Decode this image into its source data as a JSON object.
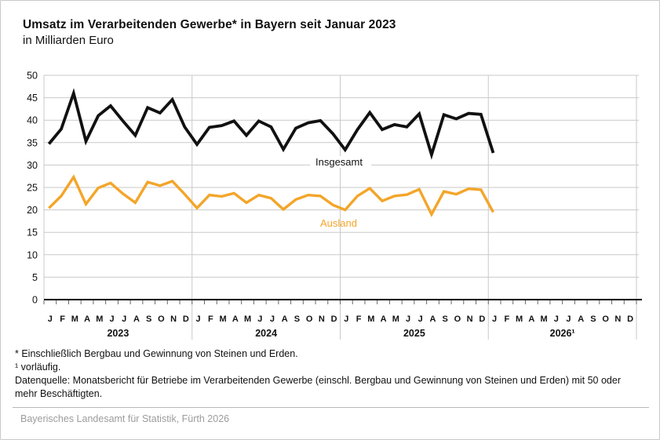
{
  "title": "Umsatz im Verarbeitenden Gewerbe* in Bayern seit Januar 2023",
  "subtitle": "in Milliarden Euro",
  "footnotes": [
    "* Einschließlich Bergbau und Gewinnung von Steinen und Erden.",
    "¹ vorläufig.",
    "Datenquelle: Monatsbericht für Betriebe im Verarbeitenden Gewerbe (einschl. Bergbau und Gewinnung von Steinen und Erden) mit 50 oder mehr Beschäftigten."
  ],
  "footer": "Bayerisches Landesamt für Statistik, Fürth 2026",
  "colors": {
    "insgesamt": "#111111",
    "ausland": "#F3A529",
    "grid": "#c9c9c9",
    "axis": "#000000",
    "tick": "#666666",
    "footer_text": "#9c9c9c"
  },
  "chart_data": {
    "type": "line",
    "title": "Umsatz im Verarbeitenden Gewerbe* in Bayern seit Januar 2023",
    "ylabel": "in Milliarden Euro",
    "xlabel": "",
    "ylim": [
      0,
      50
    ],
    "yticks": [
      0,
      5,
      10,
      15,
      20,
      25,
      30,
      35,
      40,
      45,
      50
    ],
    "grid": true,
    "legend_position": "inline-labels",
    "years": [
      "2023",
      "2024",
      "2025",
      "2026¹"
    ],
    "month_letters": [
      "J",
      "F",
      "M",
      "A",
      "M",
      "J",
      "J",
      "A",
      "S",
      "O",
      "N",
      "D"
    ],
    "series": [
      {
        "name": "Insgesamt",
        "color": "#111111",
        "values": [
          34.7,
          38.0,
          46.0,
          35.3,
          41.0,
          43.2,
          39.8,
          36.6,
          42.8,
          41.6,
          44.6,
          38.5,
          34.6,
          38.4,
          38.8,
          39.8,
          36.6,
          39.8,
          38.5,
          33.5,
          38.2,
          39.4,
          39.9,
          37.0,
          33.4,
          37.9,
          41.7,
          37.9,
          39.0,
          38.5,
          41.4,
          32.3,
          41.2,
          40.3,
          41.5,
          41.3,
          32.7
        ]
      },
      {
        "name": "Ausland",
        "color": "#F3A529",
        "values": [
          20.4,
          23.1,
          27.3,
          21.3,
          24.9,
          26.0,
          23.6,
          21.6,
          26.2,
          25.4,
          26.4,
          23.5,
          20.4,
          23.3,
          23.0,
          23.7,
          21.6,
          23.3,
          22.6,
          20.1,
          22.3,
          23.3,
          23.1,
          21.1,
          20.0,
          23.1,
          24.8,
          22.0,
          23.1,
          23.4,
          24.6,
          19.0,
          24.1,
          23.5,
          24.7,
          24.5,
          19.5
        ]
      }
    ]
  }
}
